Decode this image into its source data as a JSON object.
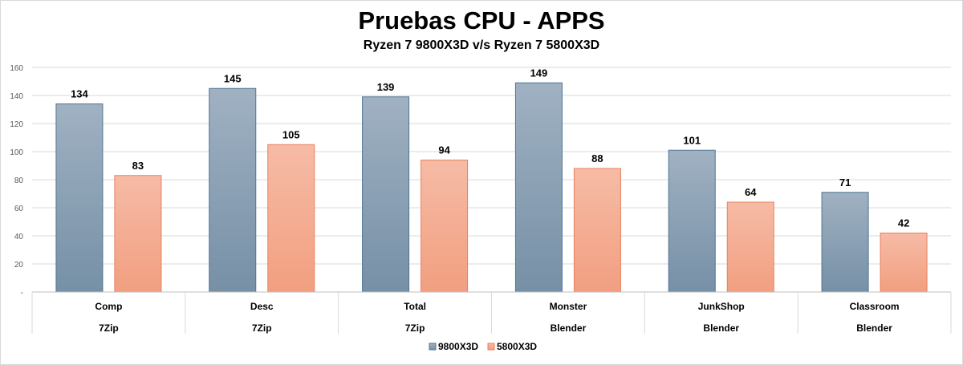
{
  "chart_data": {
    "type": "bar",
    "title": "Pruebas CPU - APPS",
    "subtitle": "Ryzen 7 9800X3D v/s Ryzen 7 5800X3D",
    "categories": [
      "Comp",
      "Desc",
      "Total",
      "Monster",
      "JunkShop",
      "Classroom"
    ],
    "groups": [
      "7Zip",
      "7Zip",
      "7Zip",
      "Blender",
      "Blender",
      "Blender"
    ],
    "series": [
      {
        "name": "9800X3D",
        "values": [
          134,
          145,
          139,
          149,
          101,
          71
        ],
        "color": "#8ea3b6"
      },
      {
        "name": "5800X3D",
        "values": [
          83,
          105,
          94,
          88,
          64,
          42
        ],
        "color": "#f4aa8f"
      }
    ],
    "y_ticks": [
      "-",
      "20",
      "40",
      "60",
      "80",
      "100",
      "120",
      "140",
      "160"
    ],
    "ylim": [
      0,
      160
    ],
    "grid": true,
    "legend_position": "bottom"
  }
}
